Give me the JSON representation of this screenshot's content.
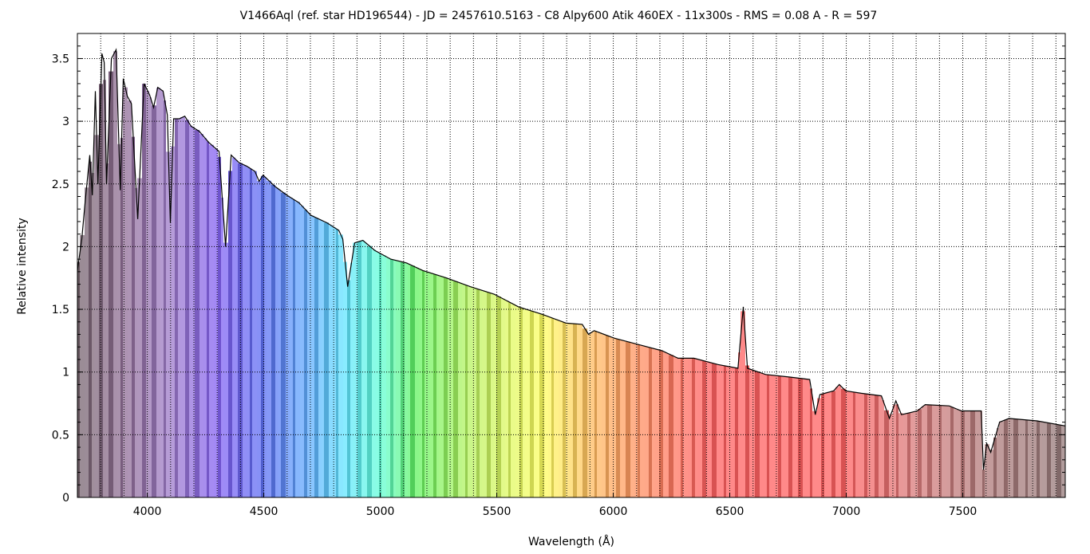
{
  "chart_data": {
    "type": "area",
    "title": "V1466Aql (ref. star HD196544)  - JD = 2457610.5163 - C8 Alpy600 Atik 460EX - 11x300s - RMS = 0.08 A - R = 597",
    "xlabel": "Wavelength (Å)",
    "ylabel": "Relative intensity",
    "xlim": [
      3700,
      7940
    ],
    "ylim": [
      0,
      3.7
    ],
    "xticks": [
      4000,
      4500,
      5000,
      5500,
      6000,
      6500,
      7000,
      7500
    ],
    "xtick_labels": [
      "4000",
      "4500",
      "5000",
      "5500",
      "6000",
      "6500",
      "7000",
      "7500"
    ],
    "yticks": [
      0,
      0.5,
      1,
      1.5,
      2,
      2.5,
      3,
      3.5
    ],
    "ytick_labels": [
      "0",
      "0.5",
      "1",
      "1.5",
      "2",
      "2.5",
      "3",
      "3.5"
    ],
    "grid": true,
    "x_minor_grid_step": 100,
    "series": [
      {
        "name": "spectrum",
        "x": [
          3700,
          3719,
          3733,
          3753,
          3764,
          3777,
          3788,
          3805,
          3815,
          3825,
          3846,
          3866,
          3884,
          3897,
          3914,
          3932,
          3959,
          3986,
          4010,
          4027,
          4045,
          4068,
          4086,
          4099,
          4113,
          4137,
          4161,
          4188,
          4223,
          4264,
          4308,
          4336,
          4360,
          4394,
          4428,
          4462,
          4480,
          4497,
          4548,
          4599,
          4651,
          4702,
          4771,
          4822,
          4839,
          4860,
          4890,
          4925,
          4976,
          5045,
          5113,
          5182,
          5284,
          5387,
          5490,
          5593,
          5695,
          5798,
          5867,
          5894,
          5918,
          6004,
          6106,
          6209,
          6278,
          6346,
          6449,
          6535,
          6558,
          6576,
          6654,
          6757,
          6843,
          6867,
          6887,
          6946,
          6970,
          6997,
          7065,
          7151,
          7185,
          7213,
          7237,
          7305,
          7339,
          7442,
          7494,
          7579,
          7589,
          7603,
          7620,
          7658,
          7699,
          7819,
          7940
        ],
        "y": [
          1.81,
          2.06,
          2.35,
          2.73,
          2.41,
          3.24,
          2.5,
          3.54,
          3.47,
          2.5,
          3.5,
          3.57,
          2.45,
          3.34,
          3.2,
          3.14,
          2.22,
          3.3,
          3.21,
          3.11,
          3.27,
          3.24,
          3.05,
          2.19,
          3.02,
          3.02,
          3.04,
          2.96,
          2.92,
          2.83,
          2.76,
          2.0,
          2.73,
          2.67,
          2.64,
          2.6,
          2.52,
          2.57,
          2.48,
          2.41,
          2.35,
          2.25,
          2.19,
          2.13,
          2.06,
          1.68,
          2.03,
          2.05,
          1.97,
          1.9,
          1.87,
          1.81,
          1.75,
          1.68,
          1.62,
          1.52,
          1.46,
          1.39,
          1.38,
          1.3,
          1.33,
          1.27,
          1.22,
          1.17,
          1.11,
          1.11,
          1.06,
          1.03,
          1.52,
          1.03,
          0.98,
          0.96,
          0.94,
          0.66,
          0.82,
          0.85,
          0.9,
          0.85,
          0.83,
          0.81,
          0.63,
          0.77,
          0.66,
          0.69,
          0.74,
          0.73,
          0.69,
          0.69,
          0.22,
          0.43,
          0.36,
          0.6,
          0.63,
          0.61,
          0.57
        ]
      }
    ],
    "colors": {
      "line": "#000000",
      "grid": "#000000",
      "stops": [
        [
          3700,
          "#5a4450"
        ],
        [
          3900,
          "#7a5080"
        ],
        [
          4100,
          "#8a60c0"
        ],
        [
          4300,
          "#6a40f0"
        ],
        [
          4500,
          "#3a50f0"
        ],
        [
          4700,
          "#40a0ff"
        ],
        [
          4850,
          "#40e0ff"
        ],
        [
          5000,
          "#40ffd0"
        ],
        [
          5150,
          "#40f040"
        ],
        [
          5400,
          "#b0f040"
        ],
        [
          5700,
          "#ffff40"
        ],
        [
          5900,
          "#ffb040"
        ],
        [
          6150,
          "#ff7040"
        ],
        [
          6400,
          "#ff4040"
        ],
        [
          7000,
          "#ff4040"
        ],
        [
          7300,
          "#d06060"
        ],
        [
          7600,
          "#a06060"
        ],
        [
          7940,
          "#806060"
        ]
      ]
    }
  }
}
